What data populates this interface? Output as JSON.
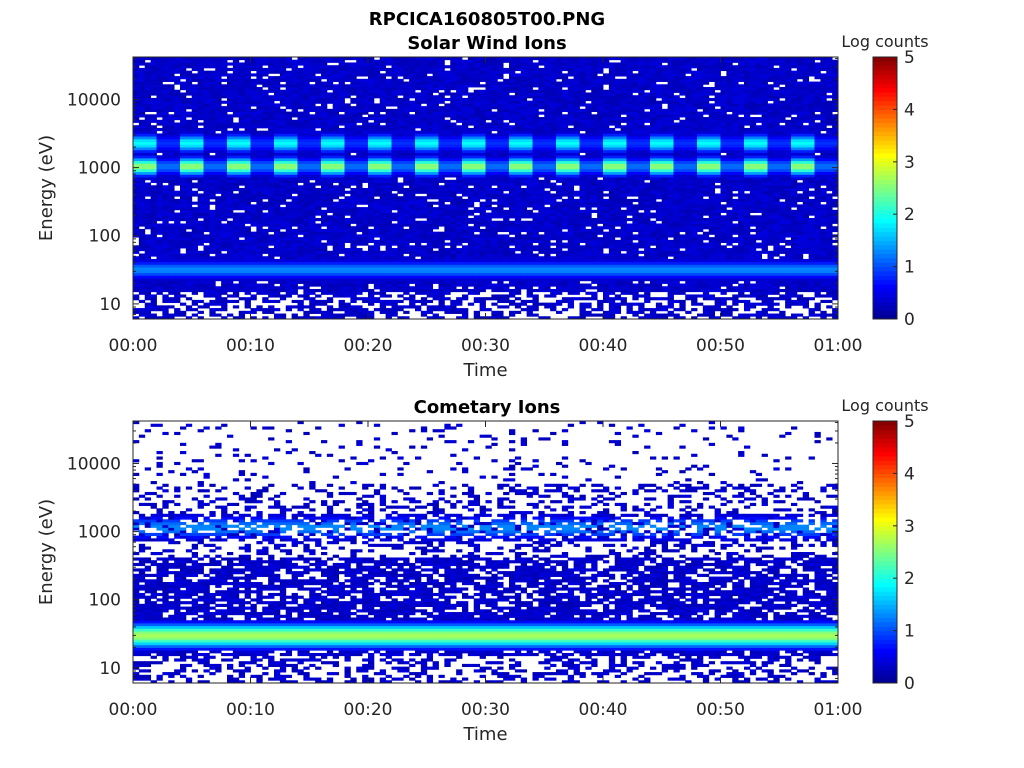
{
  "figure_title": "RPCICA160805T00.PNG",
  "colormap": [
    "#00008f",
    "#0000ff",
    "#0080ff",
    "#00ffff",
    "#80ff80",
    "#ffff00",
    "#ff8000",
    "#ff0000",
    "#800000"
  ],
  "chart_data": [
    {
      "type": "heatmap",
      "title": "Solar Wind Ions",
      "xlabel": "Time",
      "ylabel": "Energy (eV)",
      "x_ticks": [
        "00:00",
        "00:10",
        "00:20",
        "00:30",
        "00:40",
        "00:50",
        "01:00"
      ],
      "x_range_minutes": [
        0,
        60
      ],
      "y_scale": "log",
      "y_range_eV": [
        6,
        42000
      ],
      "y_ticks": [
        10,
        100,
        1000,
        10000
      ],
      "y_tick_labels": [
        "10",
        "100",
        "1000",
        "10000"
      ],
      "colorbar_label": "Log counts",
      "clim": [
        0,
        5
      ],
      "colorbar_ticks": [
        "0",
        "1",
        "2",
        "3",
        "4",
        "5"
      ],
      "grid": false,
      "bands": [
        {
          "energy_eV": 1050,
          "log_counts": 2.6,
          "note": "main proton beam, periodic"
        },
        {
          "energy_eV": 2300,
          "log_counts": 1.9,
          "note": "alpha/secondary beam, periodic"
        },
        {
          "energy_eV": 32,
          "log_counts": 1.3,
          "note": "low-energy band"
        }
      ],
      "background_log_counts": 0.2
    },
    {
      "type": "heatmap",
      "title": "Cometary Ions",
      "xlabel": "Time",
      "ylabel": "Energy (eV)",
      "x_ticks": [
        "00:00",
        "00:10",
        "00:20",
        "00:30",
        "00:40",
        "00:50",
        "01:00"
      ],
      "x_range_minutes": [
        0,
        60
      ],
      "y_scale": "log",
      "y_range_eV": [
        6,
        42000
      ],
      "y_ticks": [
        10,
        100,
        1000,
        10000
      ],
      "y_tick_labels": [
        "10",
        "100",
        "1000",
        "10000"
      ],
      "colorbar_label": "Log counts",
      "clim": [
        0,
        5
      ],
      "colorbar_ticks": [
        "0",
        "1",
        "2",
        "3",
        "4",
        "5"
      ],
      "grid": false,
      "bands": [
        {
          "energy_eV": 30,
          "log_counts": 2.7,
          "note": "main cometary ion band"
        },
        {
          "energy_eV": 1150,
          "log_counts": 1.3,
          "note": "weak band, intermittent"
        }
      ],
      "background_log_counts": 0.2
    }
  ]
}
